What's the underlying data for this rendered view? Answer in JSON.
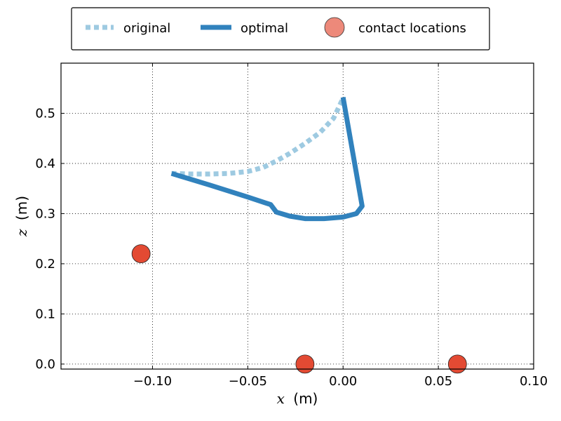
{
  "chart_data": {
    "type": "line",
    "title": "",
    "xlabel_var": "x",
    "xlabel_unit": "(m)",
    "ylabel_var": "z",
    "ylabel_unit": "(m)",
    "xlim": [
      -0.148,
      0.1
    ],
    "ylim": [
      -0.01,
      0.6
    ],
    "xticks": [
      -0.1,
      -0.05,
      0.0,
      0.05,
      0.1
    ],
    "xtick_labels": [
      "−0.10",
      "−0.05",
      "0.00",
      "0.05",
      "0.10"
    ],
    "yticks": [
      0.0,
      0.1,
      0.2,
      0.3,
      0.4,
      0.5
    ],
    "ytick_labels": [
      "0.0",
      "0.1",
      "0.2",
      "0.3",
      "0.4",
      "0.5"
    ],
    "grid": true,
    "legend_placement": "top-center, above plot",
    "series": [
      {
        "name": "original",
        "color": "#9ecae1",
        "style": "dashed",
        "points": [
          [
            -0.09,
            0.38
          ],
          [
            -0.08,
            0.379
          ],
          [
            -0.07,
            0.379
          ],
          [
            -0.06,
            0.38
          ],
          [
            -0.05,
            0.384
          ],
          [
            -0.042,
            0.392
          ],
          [
            -0.035,
            0.405
          ],
          [
            -0.028,
            0.42
          ],
          [
            -0.02,
            0.44
          ],
          [
            -0.012,
            0.462
          ],
          [
            -0.005,
            0.49
          ],
          [
            0.0,
            0.53
          ]
        ]
      },
      {
        "name": "optimal",
        "color": "#3182bd",
        "style": "solid",
        "points": [
          [
            -0.09,
            0.38
          ],
          [
            -0.07,
            0.357
          ],
          [
            -0.05,
            0.333
          ],
          [
            -0.038,
            0.318
          ],
          [
            -0.035,
            0.303
          ],
          [
            -0.028,
            0.295
          ],
          [
            -0.02,
            0.29
          ],
          [
            -0.01,
            0.29
          ],
          [
            0.0,
            0.293
          ],
          [
            0.007,
            0.3
          ],
          [
            0.01,
            0.315
          ],
          [
            0.0,
            0.532
          ]
        ]
      }
    ],
    "contact_locations": {
      "name": "contact locations",
      "color": "#e34a33",
      "points": [
        [
          -0.106,
          0.22
        ],
        [
          -0.02,
          0.0
        ],
        [
          0.06,
          0.0
        ]
      ]
    }
  }
}
